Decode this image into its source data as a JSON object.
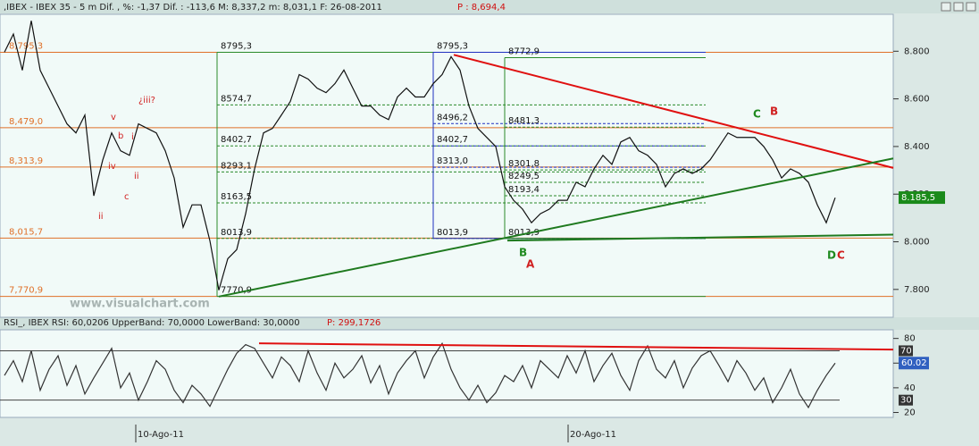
{
  "chart_data": [
    {
      "type": "line",
      "title": ",IBEX - IBEX 35 -   5 m Dif. , %: -1,37 Dif. : -113,6 M: 8,337,2 m: 8,031,1 F: 26-08-2011",
      "price_label": "P : 8,694,4",
      "watermark": "www.visualchart.com",
      "xlim": [
        0,
        1000
      ],
      "ylim": [
        7683,
        8955
      ],
      "yticks": [
        {
          "value": 7800,
          "label": "7.800"
        },
        {
          "value": 8000,
          "label": "8.000"
        },
        {
          "value": 8200,
          "label": "8.200"
        },
        {
          "value": 8400,
          "label": "8.400"
        },
        {
          "value": 8600,
          "label": "8.600"
        },
        {
          "value": 8800,
          "label": "8.800"
        }
      ],
      "x": [
        5,
        15,
        25,
        35,
        45,
        55,
        65,
        75,
        85,
        95,
        105,
        115,
        125,
        135,
        145,
        155,
        165,
        175,
        185,
        195,
        205,
        215,
        225,
        235,
        245,
        255,
        265,
        275,
        285,
        295,
        305,
        315,
        325,
        335,
        345,
        355,
        365,
        375,
        385,
        395,
        405,
        415,
        425,
        435,
        445,
        455,
        465,
        475,
        485,
        495,
        505,
        515,
        525,
        535,
        545,
        555,
        565,
        575,
        585,
        595,
        605,
        615,
        625,
        635,
        645,
        655,
        665,
        675,
        685,
        695,
        705,
        715,
        725,
        735,
        745,
        755,
        765,
        775,
        785,
        795,
        805,
        815,
        825,
        835,
        845,
        855,
        865,
        875,
        885,
        895,
        905,
        915,
        925,
        935
      ],
      "series": [
        {
          "name": "IBEX 35",
          "color": "#111111",
          "values": [
            8796,
            8872,
            8720,
            8928,
            8720,
            8645,
            8570,
            8495,
            8457,
            8532,
            8193,
            8343,
            8457,
            8382,
            8363,
            8495,
            8476,
            8457,
            8382,
            8268,
            8061,
            8155,
            8155,
            8004,
            7797,
            7929,
            7967,
            8118,
            8306,
            8457,
            8476,
            8532,
            8589,
            8702,
            8683,
            8645,
            8626,
            8664,
            8721,
            8645,
            8570,
            8570,
            8532,
            8513,
            8608,
            8645,
            8608,
            8608,
            8664,
            8702,
            8777,
            8721,
            8570,
            8476,
            8438,
            8400,
            8231,
            8174,
            8137,
            8080,
            8118,
            8137,
            8174,
            8174,
            8250,
            8231,
            8306,
            8363,
            8325,
            8419,
            8438,
            8382,
            8363,
            8325,
            8231,
            8287,
            8306,
            8287,
            8306,
            8344,
            8400,
            8457,
            8438,
            8438,
            8438,
            8400,
            8344,
            8268,
            8306,
            8287,
            8250,
            8155,
            8080,
            8185
          ]
        }
      ],
      "levels": [
        {
          "value": 8795.3,
          "label": "8,795,3"
        },
        {
          "value": 8479.0,
          "label": "8,479,0"
        },
        {
          "value": 8313.9,
          "label": "8,313,9"
        },
        {
          "value": 8015.7,
          "label": "8,015,7"
        },
        {
          "value": 7770.9,
          "label": "7,770,9"
        }
      ],
      "level_color": "#e07028",
      "fib_groups": [
        {
          "color": "#2a8a2a",
          "levels": [
            {
              "value": 8795.3,
              "label": "8795,3"
            },
            {
              "value": 8574.7,
              "label": "8574,7"
            },
            {
              "value": 8402.7,
              "label": "8402,7"
            },
            {
              "value": 8293.1,
              "label": "8293,1"
            },
            {
              "value": 8163.5,
              "label": "8163,5"
            },
            {
              "value": 8013.9,
              "label": "8013,9"
            },
            {
              "value": 7770.9,
              "label": "7770,9"
            }
          ]
        },
        {
          "color": "#2030c0",
          "levels": [
            {
              "value": 8795.3,
              "label": "8795,3"
            },
            {
              "value": 8496.2,
              "label": "8496,2"
            },
            {
              "value": 8402.7,
              "label": "8402,7"
            },
            {
              "value": 8313.0,
              "label": "8313,0"
            },
            {
              "value": 8013.9,
              "label": "8013,9"
            }
          ]
        },
        {
          "color": "#2a8a2a",
          "levels": [
            {
              "value": 8772.9,
              "label": "8772,9"
            },
            {
              "value": 8481.3,
              "label": "8481,3"
            },
            {
              "value": 8301.8,
              "label": "8301,8"
            },
            {
              "value": 8249.5,
              "label": "8249,5"
            },
            {
              "value": 8193.4,
              "label": "8193,4"
            },
            {
              "value": 8013.9,
              "label": "8013,9"
            }
          ]
        }
      ],
      "trendlines": [
        {
          "color": "#e01010",
          "x": [
            508,
            1000
          ],
          "y": [
            8785,
            8310
          ]
        },
        {
          "color": "#1f7a1f",
          "x": [
            245,
            1000
          ],
          "y": [
            7770,
            8350
          ]
        },
        {
          "color": "#1f7a1f",
          "x": [
            568,
            1000
          ],
          "y": [
            8005,
            8030
          ]
        }
      ],
      "annotations": [
        {
          "text": "¿iii?",
          "color": "#d02020"
        },
        {
          "text": "v",
          "color": "#d02020"
        },
        {
          "text": "b",
          "color": "#d02020"
        },
        {
          "text": "i",
          "color": "#d02020"
        },
        {
          "text": "iv",
          "color": "#d02020"
        },
        {
          "text": "ii",
          "color": "#d02020"
        },
        {
          "text": "c",
          "color": "#d02020"
        },
        {
          "text": "ii",
          "color": "#d02020"
        },
        {
          "text": "B",
          "color": "#1f8a1f"
        },
        {
          "text": "A",
          "color": "#d02020"
        },
        {
          "text": "C",
          "color": "#1f8a1f"
        },
        {
          "text": "B",
          "color": "#d02020"
        },
        {
          "text": "D",
          "color": "#1f8a1f"
        },
        {
          "text": "C",
          "color": "#d02020"
        }
      ],
      "last_value": {
        "value": 8185.5,
        "label": "8.185,5",
        "color": "#1a8a1a"
      }
    },
    {
      "type": "line",
      "title": "RSI_, IBEX RSI: 60,0206 UpperBand: 70,0000 LowerBand: 30,0000",
      "price_label": "P: 299,1726",
      "xlim": [
        0,
        1000
      ],
      "ylim": [
        16,
        87
      ],
      "yticks": [
        20,
        40,
        60,
        80
      ],
      "xticks": [
        {
          "value": 152,
          "label": "10-Ago-11"
        },
        {
          "value": 636,
          "label": "20-Ago-11"
        }
      ],
      "x": [
        5,
        15,
        25,
        35,
        45,
        55,
        65,
        75,
        85,
        95,
        105,
        115,
        125,
        135,
        145,
        155,
        165,
        175,
        185,
        195,
        205,
        215,
        225,
        235,
        245,
        255,
        265,
        275,
        285,
        295,
        305,
        315,
        325,
        335,
        345,
        355,
        365,
        375,
        385,
        395,
        405,
        415,
        425,
        435,
        445,
        455,
        465,
        475,
        485,
        495,
        505,
        515,
        525,
        535,
        545,
        555,
        565,
        575,
        585,
        595,
        605,
        615,
        625,
        635,
        645,
        655,
        665,
        675,
        685,
        695,
        705,
        715,
        725,
        735,
        745,
        755,
        765,
        775,
        785,
        795,
        805,
        815,
        825,
        835,
        845,
        855,
        865,
        875,
        885,
        895,
        905,
        915,
        925,
        935
      ],
      "series": [
        {
          "name": "RSI",
          "color": "#333333",
          "values": [
            50,
            62,
            45,
            70,
            38,
            55,
            66,
            42,
            58,
            35,
            48,
            60,
            72,
            40,
            52,
            30,
            45,
            62,
            55,
            38,
            28,
            42,
            35,
            25,
            40,
            55,
            68,
            75,
            72,
            60,
            48,
            65,
            58,
            45,
            70,
            52,
            38,
            60,
            48,
            55,
            66,
            44,
            58,
            35,
            52,
            62,
            70,
            48,
            65,
            76,
            55,
            40,
            30,
            42,
            28,
            36,
            50,
            45,
            58,
            40,
            62,
            55,
            48,
            66,
            52,
            70,
            45,
            58,
            68,
            50,
            38,
            62,
            74,
            55,
            48,
            62,
            40,
            56,
            66,
            70,
            58,
            45,
            62,
            52,
            38,
            48,
            28,
            40,
            55,
            35,
            24,
            38,
            50,
            60.02
          ]
        }
      ],
      "bands": [
        70,
        30
      ],
      "trendlines": [
        {
          "color": "#e01010",
          "x": [
            290,
            1000
          ],
          "y": [
            76,
            71
          ]
        }
      ],
      "last_value": {
        "value": 60.02,
        "label": "60.02",
        "color": "#3060c0"
      }
    }
  ]
}
